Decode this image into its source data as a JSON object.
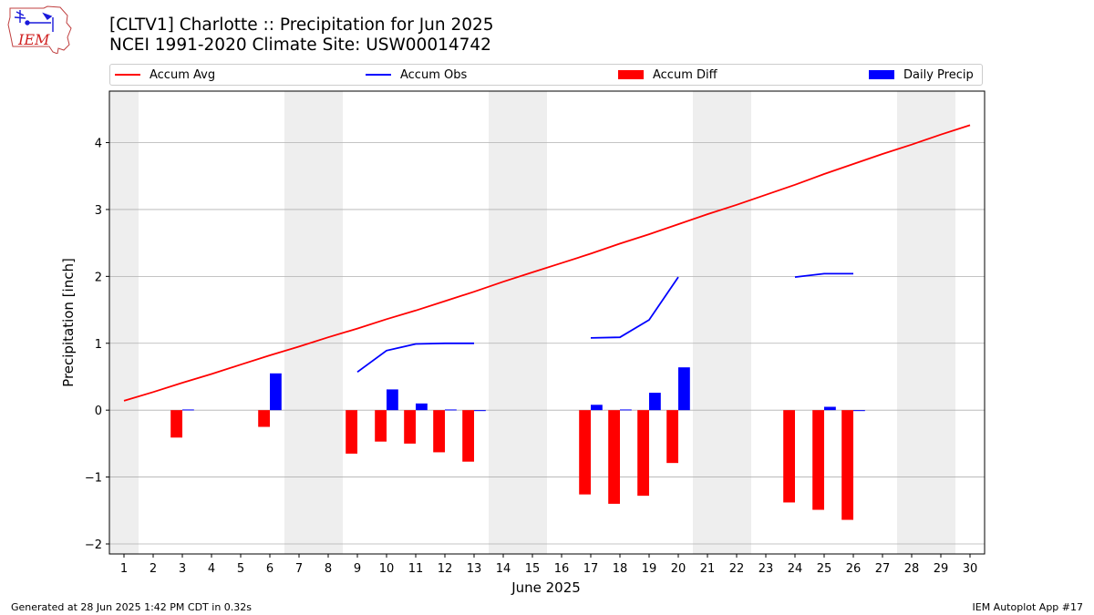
{
  "header": {
    "title_line1": "[CLTV1] Charlotte :: Precipitation for Jun 2025",
    "title_line2": "NCEI 1991-2020 Climate Site: USW00014742",
    "logo_text": "IEM"
  },
  "footer": {
    "generated": "Generated at 28 Jun 2025 1:42 PM CDT in 0.32s",
    "app": "IEM Autoplot App #17"
  },
  "colors": {
    "avg": "#ff0000",
    "obs": "#0000ff",
    "diff": "#ff0000",
    "daily": "#0000ff",
    "weekend_band": "#eeeeee",
    "grid": "#b0b0b0"
  },
  "chart_data": {
    "type": "bar",
    "xlabel": "June 2025",
    "ylabel": "Precipitation [inch]",
    "x": [
      1,
      2,
      3,
      4,
      5,
      6,
      7,
      8,
      9,
      10,
      11,
      12,
      13,
      14,
      15,
      16,
      17,
      18,
      19,
      20,
      21,
      22,
      23,
      24,
      25,
      26,
      27,
      28,
      29,
      30
    ],
    "xlim": [
      0.5,
      30.5
    ],
    "ylim": [
      -2.15,
      4.77
    ],
    "yticks": [
      -2,
      -1,
      0,
      1,
      2,
      3,
      4
    ],
    "ytick_labels": [
      "−2",
      "−1",
      "0",
      "1",
      "2",
      "3",
      "4"
    ],
    "grid": "horizontal",
    "legend_position": "top",
    "weekend_days": [
      1,
      7,
      8,
      14,
      15,
      21,
      22,
      28,
      29
    ],
    "series": [
      {
        "name": "Accum Avg",
        "kind": "line",
        "values": [
          0.14,
          0.27,
          0.41,
          0.54,
          0.68,
          0.82,
          0.95,
          1.09,
          1.22,
          1.36,
          1.49,
          1.63,
          1.77,
          1.92,
          2.06,
          2.2,
          2.34,
          2.49,
          2.63,
          2.78,
          2.93,
          3.07,
          3.22,
          3.37,
          3.53,
          3.68,
          3.83,
          3.97,
          4.12,
          4.26
        ]
      },
      {
        "name": "Accum Obs",
        "kind": "line",
        "values": [
          null,
          null,
          null,
          null,
          null,
          null,
          null,
          null,
          0.57,
          0.89,
          0.99,
          1.0,
          1.0,
          null,
          null,
          null,
          1.08,
          1.09,
          1.35,
          1.99,
          null,
          null,
          null,
          1.99,
          2.04,
          2.04,
          null,
          null,
          null,
          null
        ]
      },
      {
        "name": "Accum Diff",
        "kind": "bar",
        "values": [
          null,
          null,
          -0.41,
          null,
          null,
          -0.25,
          null,
          null,
          -0.65,
          -0.47,
          -0.5,
          -0.63,
          -0.77,
          null,
          null,
          null,
          -1.26,
          -1.4,
          -1.28,
          -0.79,
          null,
          null,
          null,
          -1.38,
          -1.49,
          -1.64,
          null,
          null,
          null,
          null
        ]
      },
      {
        "name": "Daily Precip",
        "kind": "bar",
        "values": [
          null,
          null,
          0.01,
          null,
          null,
          0.55,
          null,
          null,
          null,
          0.31,
          0.1,
          0.01,
          0.0,
          null,
          null,
          null,
          0.08,
          0.01,
          0.26,
          0.64,
          null,
          null,
          null,
          null,
          0.05,
          0.0,
          null,
          null,
          null,
          null
        ]
      }
    ]
  }
}
